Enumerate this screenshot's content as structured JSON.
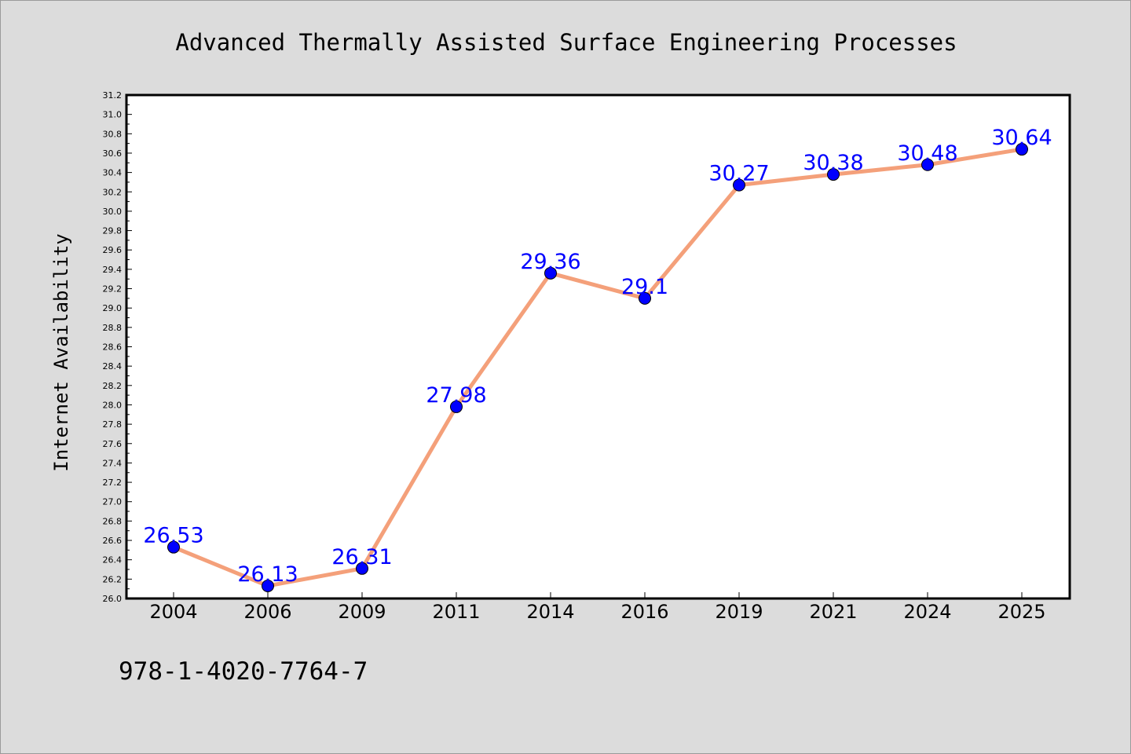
{
  "chart_data": {
    "type": "line",
    "title": "Advanced Thermally Assisted Surface Engineering Processes",
    "xlabel": "",
    "ylabel": "Internet Availability",
    "categories": [
      "2004",
      "2006",
      "2009",
      "2011",
      "2014",
      "2016",
      "2019",
      "2021",
      "2024",
      "2025"
    ],
    "series": [
      {
        "values": [
          26.53,
          26.13,
          26.31,
          27.98,
          29.36,
          29.1,
          30.27,
          30.38,
          30.48,
          30.64
        ],
        "data_labels": [
          "26.53",
          "26.13",
          "26.31",
          "27.98",
          "29.36",
          "29.1",
          "30.27",
          "30.38",
          "30.48",
          "30.64"
        ]
      }
    ],
    "ylim": [
      26.0,
      31.2
    ],
    "yticks": [
      "26.0",
      "26.2",
      "26.4",
      "26.6",
      "26.8",
      "27.0",
      "27.2",
      "27.4",
      "27.6",
      "27.8",
      "28.0",
      "28.2",
      "28.4",
      "28.6",
      "28.8",
      "29.0",
      "29.2",
      "29.4",
      "29.6",
      "29.8",
      "30.0",
      "30.2",
      "30.4",
      "30.6",
      "30.8",
      "31.0",
      "31.2"
    ],
    "grid": false,
    "legend": "none"
  },
  "footer": {
    "isbn": "978-1-4020-7764-7"
  },
  "colors": {
    "background": "#dcdcdc",
    "plot_background": "#ffffff",
    "line": "#f4a07a",
    "marker": "#0000ff",
    "data_label": "#0000ff"
  }
}
